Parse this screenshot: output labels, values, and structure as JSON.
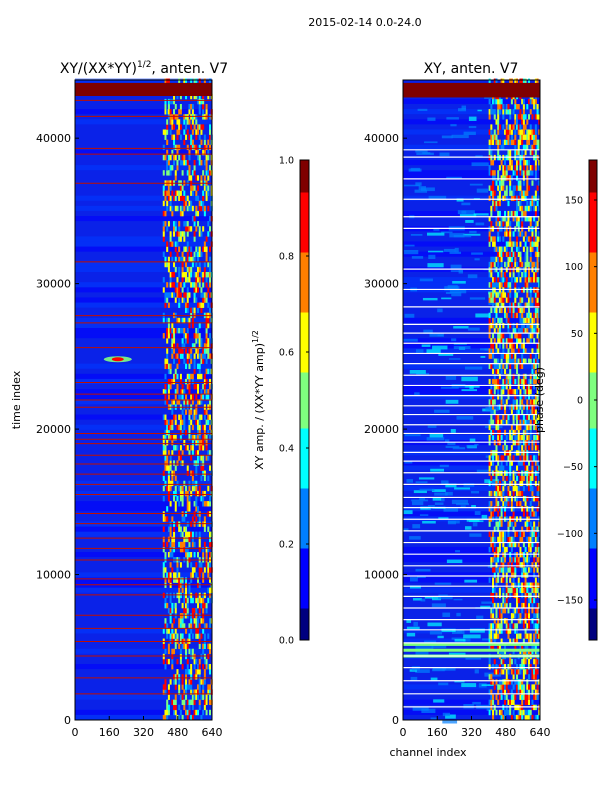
{
  "figure_title": "2015-02-14 0.0-24.0",
  "colors": {
    "jet": [
      "#00007f",
      "#0000ff",
      "#007fff",
      "#00ffff",
      "#7fff7f",
      "#ffff00",
      "#ff7f00",
      "#ff0000",
      "#7f0000"
    ],
    "background": "#0a22e8",
    "flag_line": "#c01000",
    "white_line": "#ffffff"
  },
  "chart_data": [
    {
      "type": "heatmap",
      "title": "XY/(XX*YY)",
      "title_superscript": "1/2",
      "title_suffix": ", anten. V7",
      "xlabel": "",
      "ylabel": "time index",
      "xlim": [
        0,
        640
      ],
      "ylim": [
        0,
        44000
      ],
      "xticks": [
        0,
        160,
        320,
        480,
        640
      ],
      "xtick_labels": [
        "0",
        "160",
        "320",
        "480",
        "640"
      ],
      "yticks": [
        0,
        10000,
        20000,
        30000,
        40000
      ],
      "ytick_labels": [
        "0",
        "10000",
        "20000",
        "30000",
        "40000"
      ],
      "colorbar": {
        "label": "XY amp. / (XX*YY amp)",
        "label_superscript": "1/2",
        "range": [
          0.0,
          1.0
        ],
        "ticks": [
          0.0,
          0.2,
          0.4,
          0.6,
          0.8,
          1.0
        ],
        "tick_labels": [
          "0.0",
          "0.2",
          "0.4",
          "0.6",
          "0.8",
          "1.0"
        ]
      },
      "features": {
        "active_band_channels": [
          410,
          640
        ],
        "top_flag_band": [
          42900,
          43800
        ],
        "hot_spot": {
          "channel": 200,
          "time": 24800
        },
        "flag_rows": [
          42600,
          41500,
          39300,
          38900,
          36900,
          31500,
          27800,
          27300,
          25600,
          23200,
          22400,
          22000,
          21500,
          19700,
          19300,
          19000,
          18200,
          17600,
          16900,
          16200,
          15500,
          14200,
          13500,
          12500,
          11800,
          11000,
          9700,
          9300,
          8600,
          7200,
          6300,
          5400,
          4400,
          2900,
          1800
        ]
      }
    },
    {
      "type": "heatmap",
      "title": "XY, anten. V7",
      "xlabel": "channel index",
      "ylabel": "",
      "xlim": [
        0,
        640
      ],
      "ylim": [
        0,
        44000
      ],
      "xticks": [
        0,
        160,
        320,
        480,
        640
      ],
      "xtick_labels": [
        "0",
        "160",
        "320",
        "480",
        "640"
      ],
      "yticks": [
        0,
        10000,
        20000,
        30000,
        40000
      ],
      "ytick_labels": [
        "0",
        "10000",
        "20000",
        "30000",
        "40000"
      ],
      "colorbar": {
        "label": "phase (deg)",
        "range": [
          -180,
          180
        ],
        "ticks": [
          -150,
          -100,
          -50,
          0,
          50,
          100,
          150
        ],
        "tick_labels": [
          "−150",
          "−100",
          "−50",
          "0",
          "50",
          "100",
          "150"
        ]
      },
      "features": {
        "active_band_channels": [
          400,
          640
        ],
        "top_flag_band": [
          42800,
          43800
        ],
        "white_rows": [
          39200,
          38700,
          37200,
          35800,
          34600,
          33800,
          31000,
          29600,
          28400,
          27200,
          26600,
          25900,
          25200,
          24500,
          23700,
          23000,
          22300,
          21600,
          21000,
          20300,
          19700,
          19100,
          18400,
          17800,
          17000,
          16200,
          15300,
          14600,
          13800,
          13000,
          12200,
          11400,
          10600,
          9900,
          9200,
          8500,
          7700,
          6900,
          6200,
          5300,
          4400,
          3600,
          2700,
          1800,
          900
        ],
        "lowband_stripes": [
          4300,
          4700,
          5100
        ]
      }
    }
  ]
}
